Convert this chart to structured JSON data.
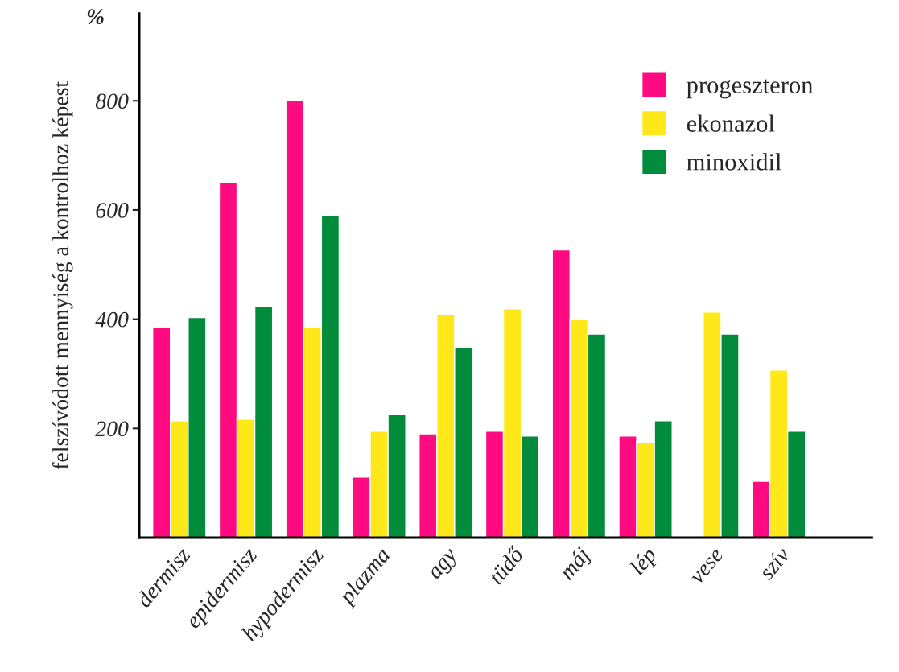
{
  "chart_data": {
    "type": "bar",
    "ylabel": "felszívódott mennyiség a kontrolhoz képest",
    "annotations": [
      "%"
    ],
    "categories": [
      "dermisz",
      "epidermisz",
      "hypodermisz",
      "plazma",
      "agy",
      "tüdő",
      "máj",
      "lép",
      "vese",
      "szív"
    ],
    "series": [
      {
        "name": "progeszteron",
        "color": "#ff0a80",
        "values": [
          385,
          650,
          800,
          111,
          190,
          195,
          527,
          186,
          null,
          103
        ]
      },
      {
        "name": "ekonazol",
        "color": "#ffe81a",
        "values": [
          214,
          217,
          385,
          195,
          409,
          419,
          399,
          175,
          413,
          307
        ]
      },
      {
        "name": "minoxidil",
        "color": "#008c3a",
        "values": [
          403,
          424,
          590,
          225,
          348,
          186,
          373,
          214,
          373,
          195
        ]
      }
    ],
    "ylim": [
      0,
      960
    ],
    "yticks": [
      200,
      400,
      600,
      800
    ],
    "grid": false,
    "legend": "top right"
  }
}
